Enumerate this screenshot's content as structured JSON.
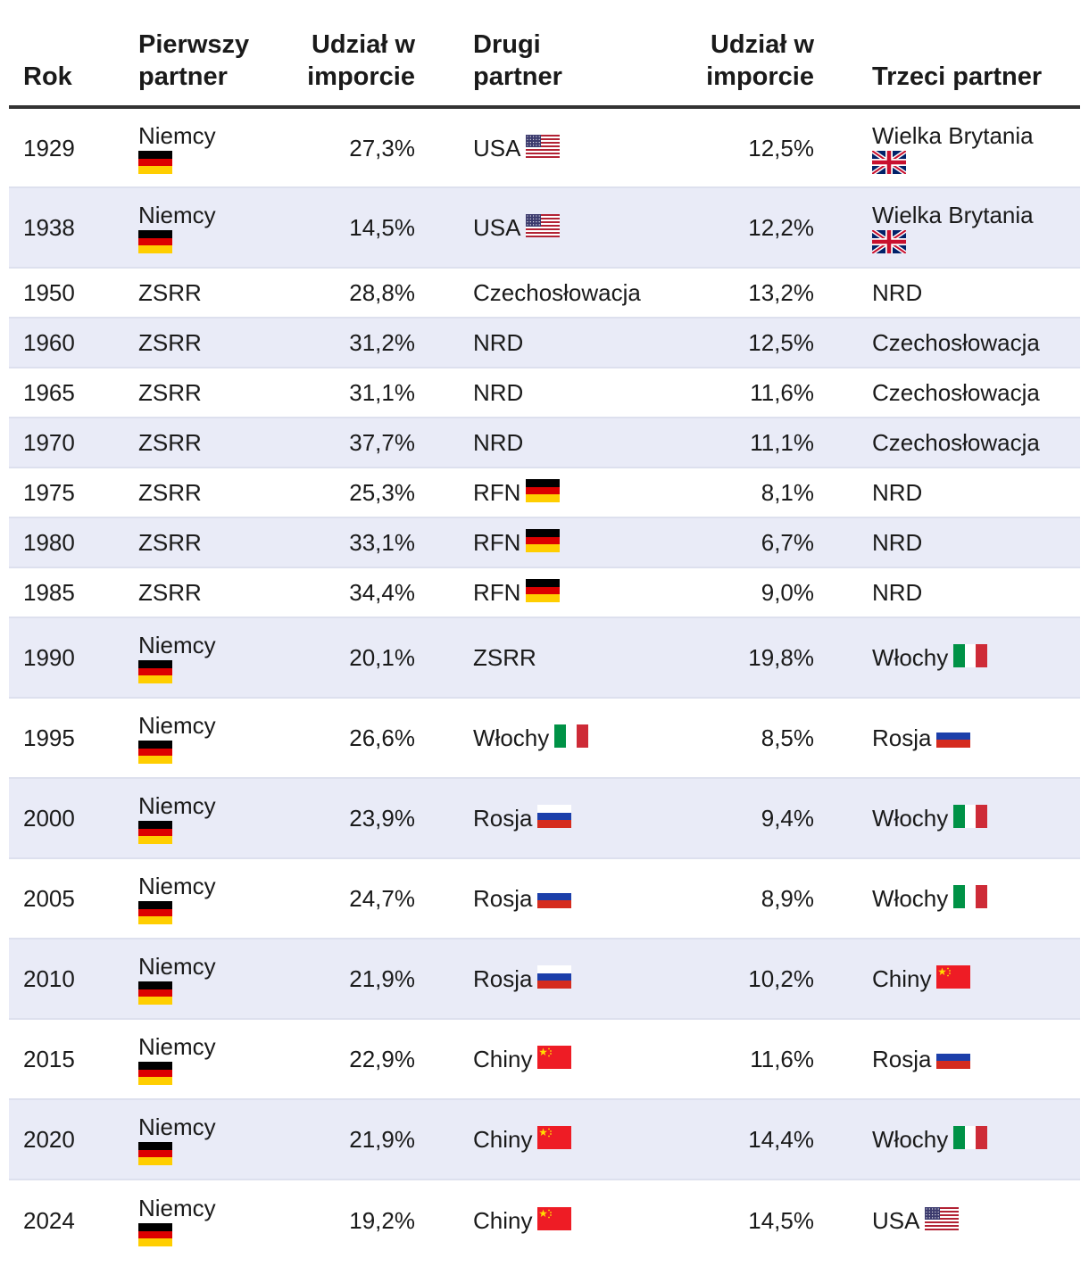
{
  "headers": {
    "year": "Rok",
    "partner1": [
      "Pierwszy",
      "partner"
    ],
    "share1": [
      "Udział w",
      "imporcie"
    ],
    "partner2": "Drugi partner",
    "share2": [
      "Udział w",
      "imporcie"
    ],
    "partner3": "Trzeci partner"
  },
  "rows": [
    {
      "year": "1929",
      "p1": "Niemcy",
      "p1_flag": "de",
      "s1": "27,3%",
      "p2": "USA",
      "p2_flag": "us",
      "s2": "12,5%",
      "p3": "Wielka Brytania",
      "p3_flag": "gb"
    },
    {
      "year": "1938",
      "p1": "Niemcy",
      "p1_flag": "de",
      "s1": "14,5%",
      "p2": "USA",
      "p2_flag": "us",
      "s2": "12,2%",
      "p3": "Wielka Brytania",
      "p3_flag": "gb"
    },
    {
      "year": "1950",
      "p1": "ZSRR",
      "p1_flag": "",
      "s1": "28,8%",
      "p2": "Czechosłowacja",
      "p2_flag": "",
      "s2": "13,2%",
      "p3": "NRD",
      "p3_flag": ""
    },
    {
      "year": "1960",
      "p1": "ZSRR",
      "p1_flag": "",
      "s1": "31,2%",
      "p2": "NRD",
      "p2_flag": "",
      "s2": "12,5%",
      "p3": "Czechosłowacja",
      "p3_flag": ""
    },
    {
      "year": "1965",
      "p1": "ZSRR",
      "p1_flag": "",
      "s1": "31,1%",
      "p2": "NRD",
      "p2_flag": "",
      "s2": "11,6%",
      "p3": "Czechosłowacja",
      "p3_flag": ""
    },
    {
      "year": "1970",
      "p1": "ZSRR",
      "p1_flag": "",
      "s1": "37,7%",
      "p2": "NRD",
      "p2_flag": "",
      "s2": "11,1%",
      "p3": "Czechosłowacja",
      "p3_flag": ""
    },
    {
      "year": "1975",
      "p1": "ZSRR",
      "p1_flag": "",
      "s1": "25,3%",
      "p2": "RFN",
      "p2_flag": "de",
      "s2": "8,1%",
      "p3": "NRD",
      "p3_flag": ""
    },
    {
      "year": "1980",
      "p1": "ZSRR",
      "p1_flag": "",
      "s1": "33,1%",
      "p2": "RFN",
      "p2_flag": "de",
      "s2": "6,7%",
      "p3": "NRD",
      "p3_flag": ""
    },
    {
      "year": "1985",
      "p1": "ZSRR",
      "p1_flag": "",
      "s1": "34,4%",
      "p2": "RFN",
      "p2_flag": "de",
      "s2": "9,0%",
      "p3": "NRD",
      "p3_flag": ""
    },
    {
      "year": "1990",
      "p1": "Niemcy",
      "p1_flag": "de",
      "s1": "20,1%",
      "p2": "ZSRR",
      "p2_flag": "",
      "s2": "19,8%",
      "p3": "Włochy",
      "p3_flag": "it"
    },
    {
      "year": "1995",
      "p1": "Niemcy",
      "p1_flag": "de",
      "s1": "26,6%",
      "p2": "Włochy",
      "p2_flag": "it",
      "s2": "8,5%",
      "p3": "Rosja",
      "p3_flag": "ru"
    },
    {
      "year": "2000",
      "p1": "Niemcy",
      "p1_flag": "de",
      "s1": "23,9%",
      "p2": "Rosja",
      "p2_flag": "ru",
      "s2": "9,4%",
      "p3": "Włochy",
      "p3_flag": "it"
    },
    {
      "year": "2005",
      "p1": "Niemcy",
      "p1_flag": "de",
      "s1": "24,7%",
      "p2": "Rosja",
      "p2_flag": "ru",
      "s2": "8,9%",
      "p3": "Włochy",
      "p3_flag": "it"
    },
    {
      "year": "2010",
      "p1": "Niemcy",
      "p1_flag": "de",
      "s1": "21,9%",
      "p2": "Rosja",
      "p2_flag": "ru",
      "s2": "10,2%",
      "p3": "Chiny",
      "p3_flag": "cn"
    },
    {
      "year": "2015",
      "p1": "Niemcy",
      "p1_flag": "de",
      "s1": "22,9%",
      "p2": "Chiny",
      "p2_flag": "cn",
      "s2": "11,6%",
      "p3": "Rosja",
      "p3_flag": "ru"
    },
    {
      "year": "2020",
      "p1": "Niemcy",
      "p1_flag": "de",
      "s1": "21,9%",
      "p2": "Chiny",
      "p2_flag": "cn",
      "s2": "14,4%",
      "p3": "Włochy",
      "p3_flag": "it"
    },
    {
      "year": "2024",
      "p1": "Niemcy",
      "p1_flag": "de",
      "s1": "19,2%",
      "p2": "Chiny",
      "p2_flag": "cn",
      "s2": "14,5%",
      "p3": "USA",
      "p3_flag": "us"
    }
  ],
  "colors": {
    "header_rule": "#333333",
    "row_shade": "#e9ebf7",
    "row_divider": "#dde0ee",
    "text": "#1a1a1a"
  }
}
